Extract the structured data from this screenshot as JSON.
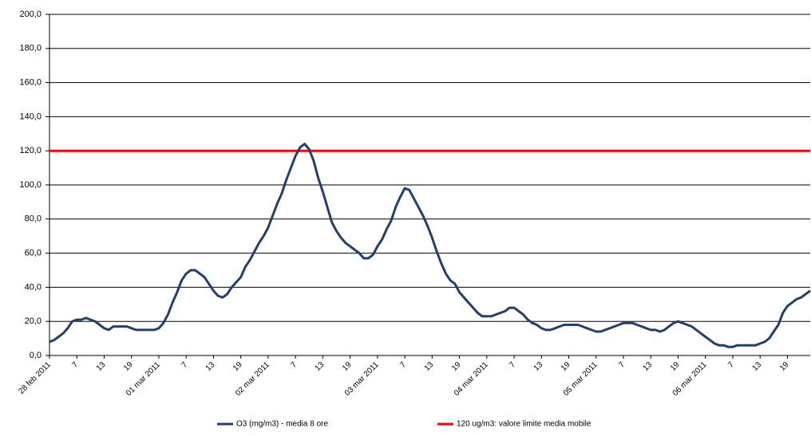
{
  "chart_data": {
    "type": "line",
    "categories": [
      "28 feb 2011",
      null,
      null,
      null,
      null,
      null,
      "7",
      null,
      null,
      null,
      null,
      null,
      "13",
      null,
      null,
      null,
      null,
      null,
      "19",
      null,
      null,
      null,
      null,
      null,
      "01 mar 2011",
      null,
      null,
      null,
      null,
      null,
      "7",
      null,
      null,
      null,
      null,
      null,
      "13",
      null,
      null,
      null,
      null,
      null,
      "19",
      null,
      null,
      null,
      null,
      null,
      "02 mar 2011",
      null,
      null,
      null,
      null,
      null,
      "7",
      null,
      null,
      null,
      null,
      null,
      "13",
      null,
      null,
      null,
      null,
      null,
      "19",
      null,
      null,
      null,
      null,
      null,
      "03 mar 2011",
      null,
      null,
      null,
      null,
      null,
      "7",
      null,
      null,
      null,
      null,
      null,
      "13",
      null,
      null,
      null,
      null,
      null,
      "19",
      null,
      null,
      null,
      null,
      null,
      "04 mar 2011",
      null,
      null,
      null,
      null,
      null,
      "7",
      null,
      null,
      null,
      null,
      null,
      "13",
      null,
      null,
      null,
      null,
      null,
      "19",
      null,
      null,
      null,
      null,
      null,
      "05 mar 2011",
      null,
      null,
      null,
      null,
      null,
      "7",
      null,
      null,
      null,
      null,
      null,
      "13",
      null,
      null,
      null,
      null,
      null,
      "19",
      null,
      null,
      null,
      null,
      null,
      "06 mar 2011",
      null,
      null,
      null,
      null,
      null,
      "7",
      null,
      null,
      null,
      null,
      null,
      "13",
      null,
      null,
      null,
      null,
      null,
      "19",
      null,
      null,
      null,
      null,
      null
    ],
    "series": [
      {
        "name": "O3 (mg/m3) - media 8 ore",
        "color": "#243f6b",
        "values": [
          8,
          9,
          11,
          13,
          16,
          20,
          21,
          21,
          22,
          21,
          20,
          18,
          16,
          15,
          17,
          17,
          17,
          17,
          16,
          15,
          15,
          15,
          15,
          15,
          16,
          19,
          24,
          31,
          37,
          44,
          48,
          50,
          50,
          48,
          46,
          42,
          38,
          35,
          34,
          36,
          40,
          43,
          46,
          52,
          56,
          61,
          66,
          70,
          75,
          82,
          89,
          95,
          103,
          110,
          117,
          122,
          124,
          121,
          114,
          104,
          96,
          87,
          78,
          73,
          69,
          66,
          64,
          62,
          60,
          57,
          57,
          59,
          64,
          68,
          74,
          79,
          87,
          93,
          98,
          97,
          92,
          87,
          82,
          76,
          69,
          61,
          54,
          48,
          44,
          42,
          37,
          34,
          31,
          28,
          25,
          23,
          23,
          23,
          24,
          25,
          26,
          28,
          28,
          26,
          24,
          21,
          19,
          18,
          16,
          15,
          15,
          16,
          17,
          18,
          18,
          18,
          18,
          17,
          16,
          15,
          14,
          14,
          15,
          16,
          17,
          18,
          19,
          19,
          19,
          18,
          17,
          16,
          15,
          15,
          14,
          15,
          17,
          19,
          20,
          19,
          18,
          17,
          15,
          13,
          11,
          9,
          7,
          6,
          6,
          5,
          5,
          6,
          6,
          6,
          6,
          6,
          7,
          8,
          10,
          14,
          18,
          25,
          29,
          31,
          33,
          34,
          36,
          38
        ]
      }
    ],
    "threshold": {
      "name": "120 ug/m3: valore limite media mobile",
      "value": 120,
      "color": "#ff0000"
    },
    "ylim": [
      0,
      200
    ],
    "yticks": [
      {
        "value": 0,
        "label": "0,0"
      },
      {
        "value": 20,
        "label": "20,0"
      },
      {
        "value": 40,
        "label": "40,0"
      },
      {
        "value": 60,
        "label": "60,0"
      },
      {
        "value": 80,
        "label": "80,0"
      },
      {
        "value": 100,
        "label": "100,0"
      },
      {
        "value": 120,
        "label": "120,0"
      },
      {
        "value": 140,
        "label": "140,0"
      },
      {
        "value": 160,
        "label": "160,0"
      },
      {
        "value": 180,
        "label": "180,0"
      },
      {
        "value": 200,
        "label": "200,0"
      }
    ],
    "grid": true
  }
}
